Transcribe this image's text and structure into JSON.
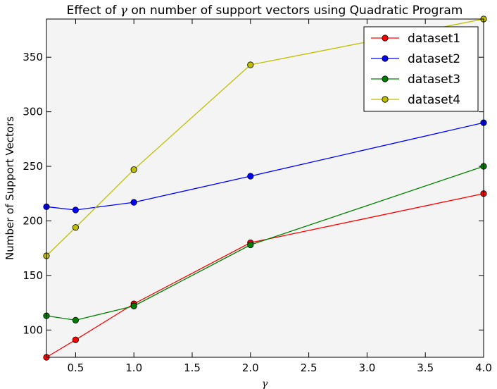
{
  "chart_data": {
    "type": "line",
    "title_prefix": "Effect of ",
    "title_symbol": "γ",
    "title_suffix": " on number of support vectors using Quadratic Program",
    "xlabel": "γ",
    "ylabel": "Number of Support Vectors",
    "xlim": [
      0.25,
      4.0
    ],
    "ylim": [
      75,
      385
    ],
    "xticks": [
      0.5,
      1.0,
      1.5,
      2.0,
      2.5,
      3.0,
      3.5,
      4.0
    ],
    "xtick_labels": [
      "0.5",
      "1.0",
      "1.5",
      "2.0",
      "2.5",
      "3.0",
      "3.5",
      "4.0"
    ],
    "yticks": [
      100,
      150,
      200,
      250,
      300,
      350
    ],
    "ytick_labels": [
      "100",
      "150",
      "200",
      "250",
      "300",
      "350"
    ],
    "x": [
      0.25,
      0.5,
      1.0,
      2.0,
      4.0
    ],
    "series": [
      {
        "name": "dataset1",
        "color": "#ff0000",
        "values": [
          75,
          91,
          124,
          180,
          225
        ]
      },
      {
        "name": "dataset2",
        "color": "#0000ff",
        "values": [
          213,
          210,
          217,
          241,
          290
        ]
      },
      {
        "name": "dataset3",
        "color": "#008000",
        "values": [
          113,
          109,
          122,
          178,
          250
        ]
      },
      {
        "name": "dataset4",
        "color": "#bfbf00",
        "values": [
          168,
          194,
          247,
          343,
          385
        ]
      }
    ],
    "legend_position": "top-right",
    "plot_background": "#f4f4f4",
    "grid": false
  }
}
